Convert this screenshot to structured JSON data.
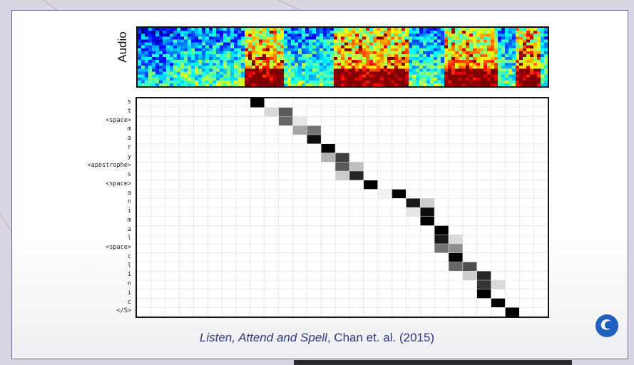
{
  "figure": {
    "audio_label": "Audio",
    "row_labels": [
      "s",
      "t",
      "<space>",
      "m",
      "a",
      "r",
      "y",
      "<apostrophe>",
      "s",
      "<space>",
      "a",
      "n",
      "i",
      "m",
      "a",
      "l",
      "<space>",
      "c",
      "l",
      "i",
      "n",
      "i",
      "c",
      "</S>"
    ],
    "citation": {
      "title": "Listen, Attend and Spell",
      "rest": ", Chan et. al. (2015)"
    }
  },
  "chart_data": {
    "type": "heatmap",
    "columns": 29,
    "rows": [
      "s",
      "t",
      "<space>",
      "m",
      "a",
      "r",
      "y",
      "<apostrophe>",
      "s",
      "<space>",
      "a",
      "n",
      "i",
      "m",
      "a",
      "l",
      "<space>",
      "c",
      "l",
      "i",
      "n",
      "i",
      "c",
      "</S>"
    ],
    "attention": [
      [
        [
          8,
          1.0
        ]
      ],
      [
        [
          9,
          0.15
        ],
        [
          10,
          0.65
        ]
      ],
      [
        [
          10,
          0.6
        ],
        [
          11,
          0.1
        ]
      ],
      [
        [
          11,
          0.35
        ],
        [
          12,
          0.55
        ]
      ],
      [
        [
          12,
          0.95
        ]
      ],
      [
        [
          13,
          1.0
        ]
      ],
      [
        [
          13,
          0.3
        ],
        [
          14,
          0.75
        ]
      ],
      [
        [
          14,
          0.65
        ],
        [
          15,
          0.25
        ]
      ],
      [
        [
          14,
          0.2
        ],
        [
          15,
          0.85
        ]
      ],
      [
        [
          16,
          1.0
        ]
      ],
      [
        [
          17,
          0.05
        ],
        [
          18,
          1.0
        ]
      ],
      [
        [
          19,
          0.9
        ],
        [
          20,
          0.2
        ]
      ],
      [
        [
          19,
          0.1
        ],
        [
          20,
          0.95
        ]
      ],
      [
        [
          20,
          1.0
        ]
      ],
      [
        [
          21,
          1.0
        ]
      ],
      [
        [
          21,
          0.9
        ],
        [
          22,
          0.15
        ]
      ],
      [
        [
          21,
          0.55
        ],
        [
          22,
          0.45
        ]
      ],
      [
        [
          22,
          1.0
        ]
      ],
      [
        [
          22,
          0.6
        ],
        [
          23,
          0.7
        ]
      ],
      [
        [
          23,
          0.2
        ],
        [
          24,
          0.85
        ]
      ],
      [
        [
          24,
          0.8
        ],
        [
          25,
          0.15
        ]
      ],
      [
        [
          24,
          1.0
        ]
      ],
      [
        [
          25,
          1.0
        ]
      ],
      [
        [
          26,
          1.0
        ]
      ]
    ],
    "colors": {
      "high": "#000000",
      "low": "#ffffff",
      "grid": "#dddddd"
    }
  }
}
